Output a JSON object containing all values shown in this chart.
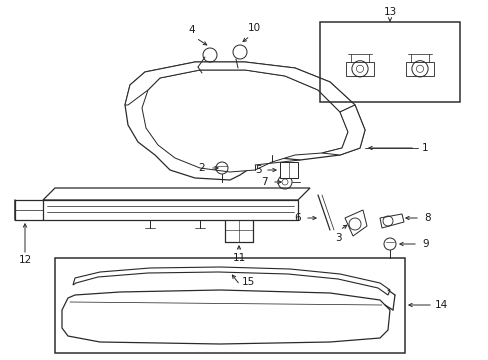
{
  "background_color": "#ffffff",
  "line_color": "#2a2a2a",
  "label_color": "#1a1a1a",
  "figsize": [
    4.89,
    3.6
  ],
  "dpi": 100
}
